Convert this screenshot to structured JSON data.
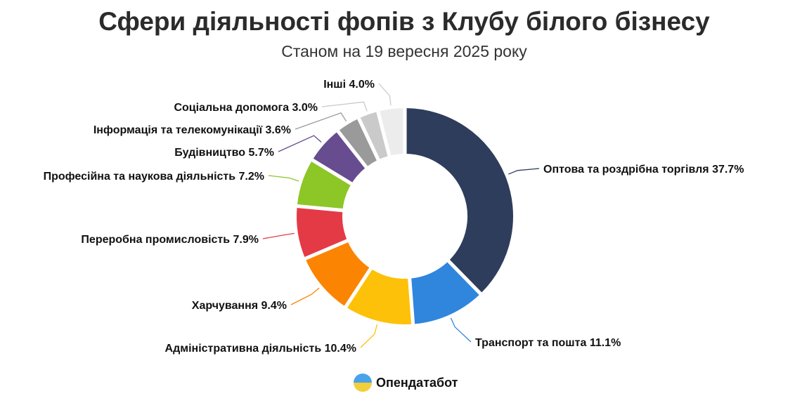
{
  "chart_data": {
    "type": "pie",
    "variant": "donut",
    "title": "Сфери діяльності фопів з Клубу білого бізнесу",
    "subtitle": "Станом на 19 вересня 2025 року",
    "unit": "%",
    "slices": [
      {
        "label": "Оптова та роздрібна торгівля",
        "value": 37.7,
        "color": "#2e3d5c"
      },
      {
        "label": "Транспорт та пошта",
        "value": 11.1,
        "color": "#2f86dc"
      },
      {
        "label": "Адміністративна діяльність",
        "value": 10.4,
        "color": "#fdc10a"
      },
      {
        "label": "Харчування",
        "value": 9.4,
        "color": "#fb8502"
      },
      {
        "label": "Переробна промисловість",
        "value": 7.9,
        "color": "#e43a46"
      },
      {
        "label": "Професійна та наукова діяльність",
        "value": 7.2,
        "color": "#8dc627"
      },
      {
        "label": "Будівництво",
        "value": 5.7,
        "color": "#674c90"
      },
      {
        "label": "Інформація та телекомунікації",
        "value": 3.6,
        "color": "#9a9a9a"
      },
      {
        "label": "Соціальна допомога",
        "value": 3.0,
        "color": "#cacaca"
      },
      {
        "label": "Інші",
        "value": 4.0,
        "color": "#ececec"
      }
    ]
  },
  "brand": {
    "name": "Опендатабот"
  }
}
